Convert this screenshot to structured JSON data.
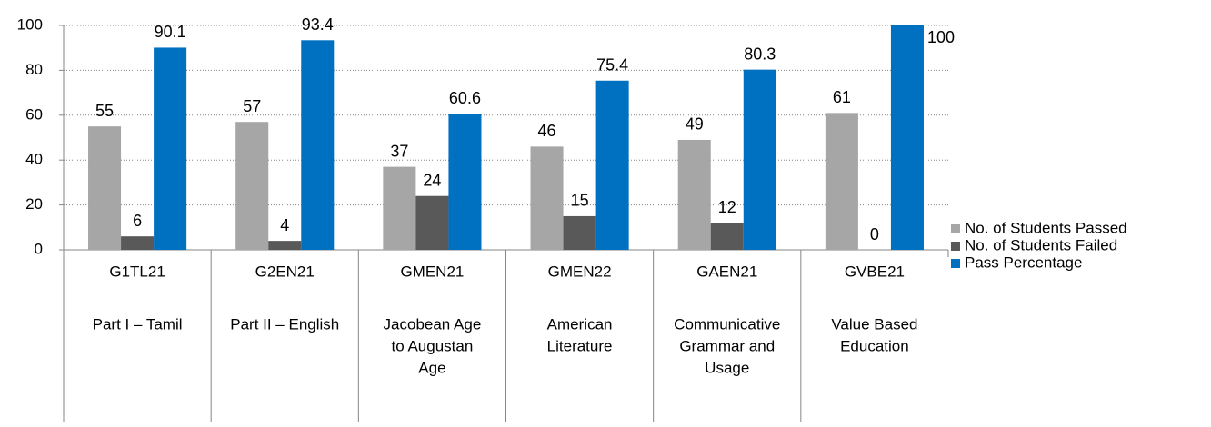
{
  "chart_data": {
    "type": "bar",
    "categories": [
      "G1TL21",
      "G2EN21",
      "GMEN21",
      "GMEN22",
      "GAEN21",
      "GVBE21"
    ],
    "category_labels": [
      [
        "Part I – Tamil"
      ],
      [
        "Part II – English"
      ],
      [
        "Jacobean Age",
        "to Augustan",
        "Age"
      ],
      [
        "American",
        "Literature"
      ],
      [
        "Communicative",
        "Grammar and",
        "Usage"
      ],
      [
        "Value Based",
        "Education"
      ]
    ],
    "series": [
      {
        "name": "No. of Students Passed",
        "color": "#a6a6a6",
        "values": [
          55,
          57,
          37,
          46,
          49,
          61
        ]
      },
      {
        "name": "No. of Students Failed",
        "color": "#595959",
        "values": [
          6,
          4,
          24,
          15,
          12,
          0
        ]
      },
      {
        "name": "Pass Percentage",
        "color": "#0070c0",
        "values": [
          90.1,
          93.4,
          60.6,
          75.4,
          80.3,
          100
        ]
      }
    ],
    "ylim": [
      0,
      100
    ],
    "yticks": [
      0,
      20,
      40,
      60,
      80,
      100
    ],
    "grid": true,
    "legend": "right"
  }
}
